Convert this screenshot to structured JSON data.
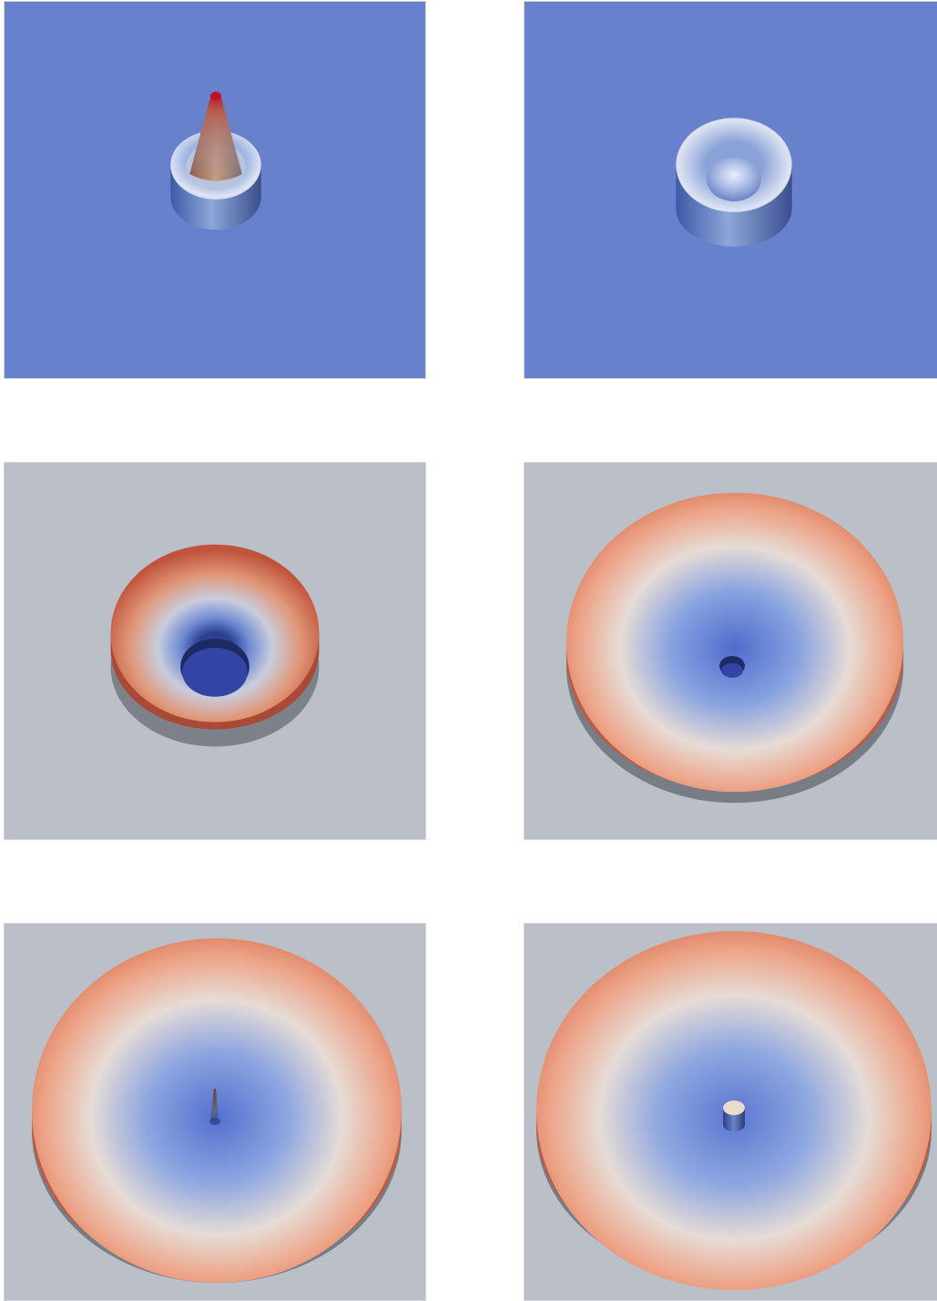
{
  "colors": {
    "blue_background": "#6781cc",
    "grey_background": "#bbc0c8",
    "surface_low": "#5a78d0",
    "surface_high": "#e07a5a",
    "peak": "#c0102a",
    "hole": "#3344a6"
  },
  "panels": [
    {
      "id": "p1",
      "background": "blue",
      "subject": "cone-peak-in-cylindrical-well"
    },
    {
      "id": "p2",
      "background": "blue",
      "subject": "cylindrical-well-with-central-dimple"
    },
    {
      "id": "p3",
      "background": "grey",
      "subject": "small-funnel-with-open-hole"
    },
    {
      "id": "p4",
      "background": "grey",
      "subject": "wide-disc-with-small-hole"
    },
    {
      "id": "p5",
      "background": "grey",
      "subject": "wide-disc-with-thin-spike"
    },
    {
      "id": "p6",
      "background": "grey",
      "subject": "wide-disc-with-small-cylinder"
    }
  ]
}
